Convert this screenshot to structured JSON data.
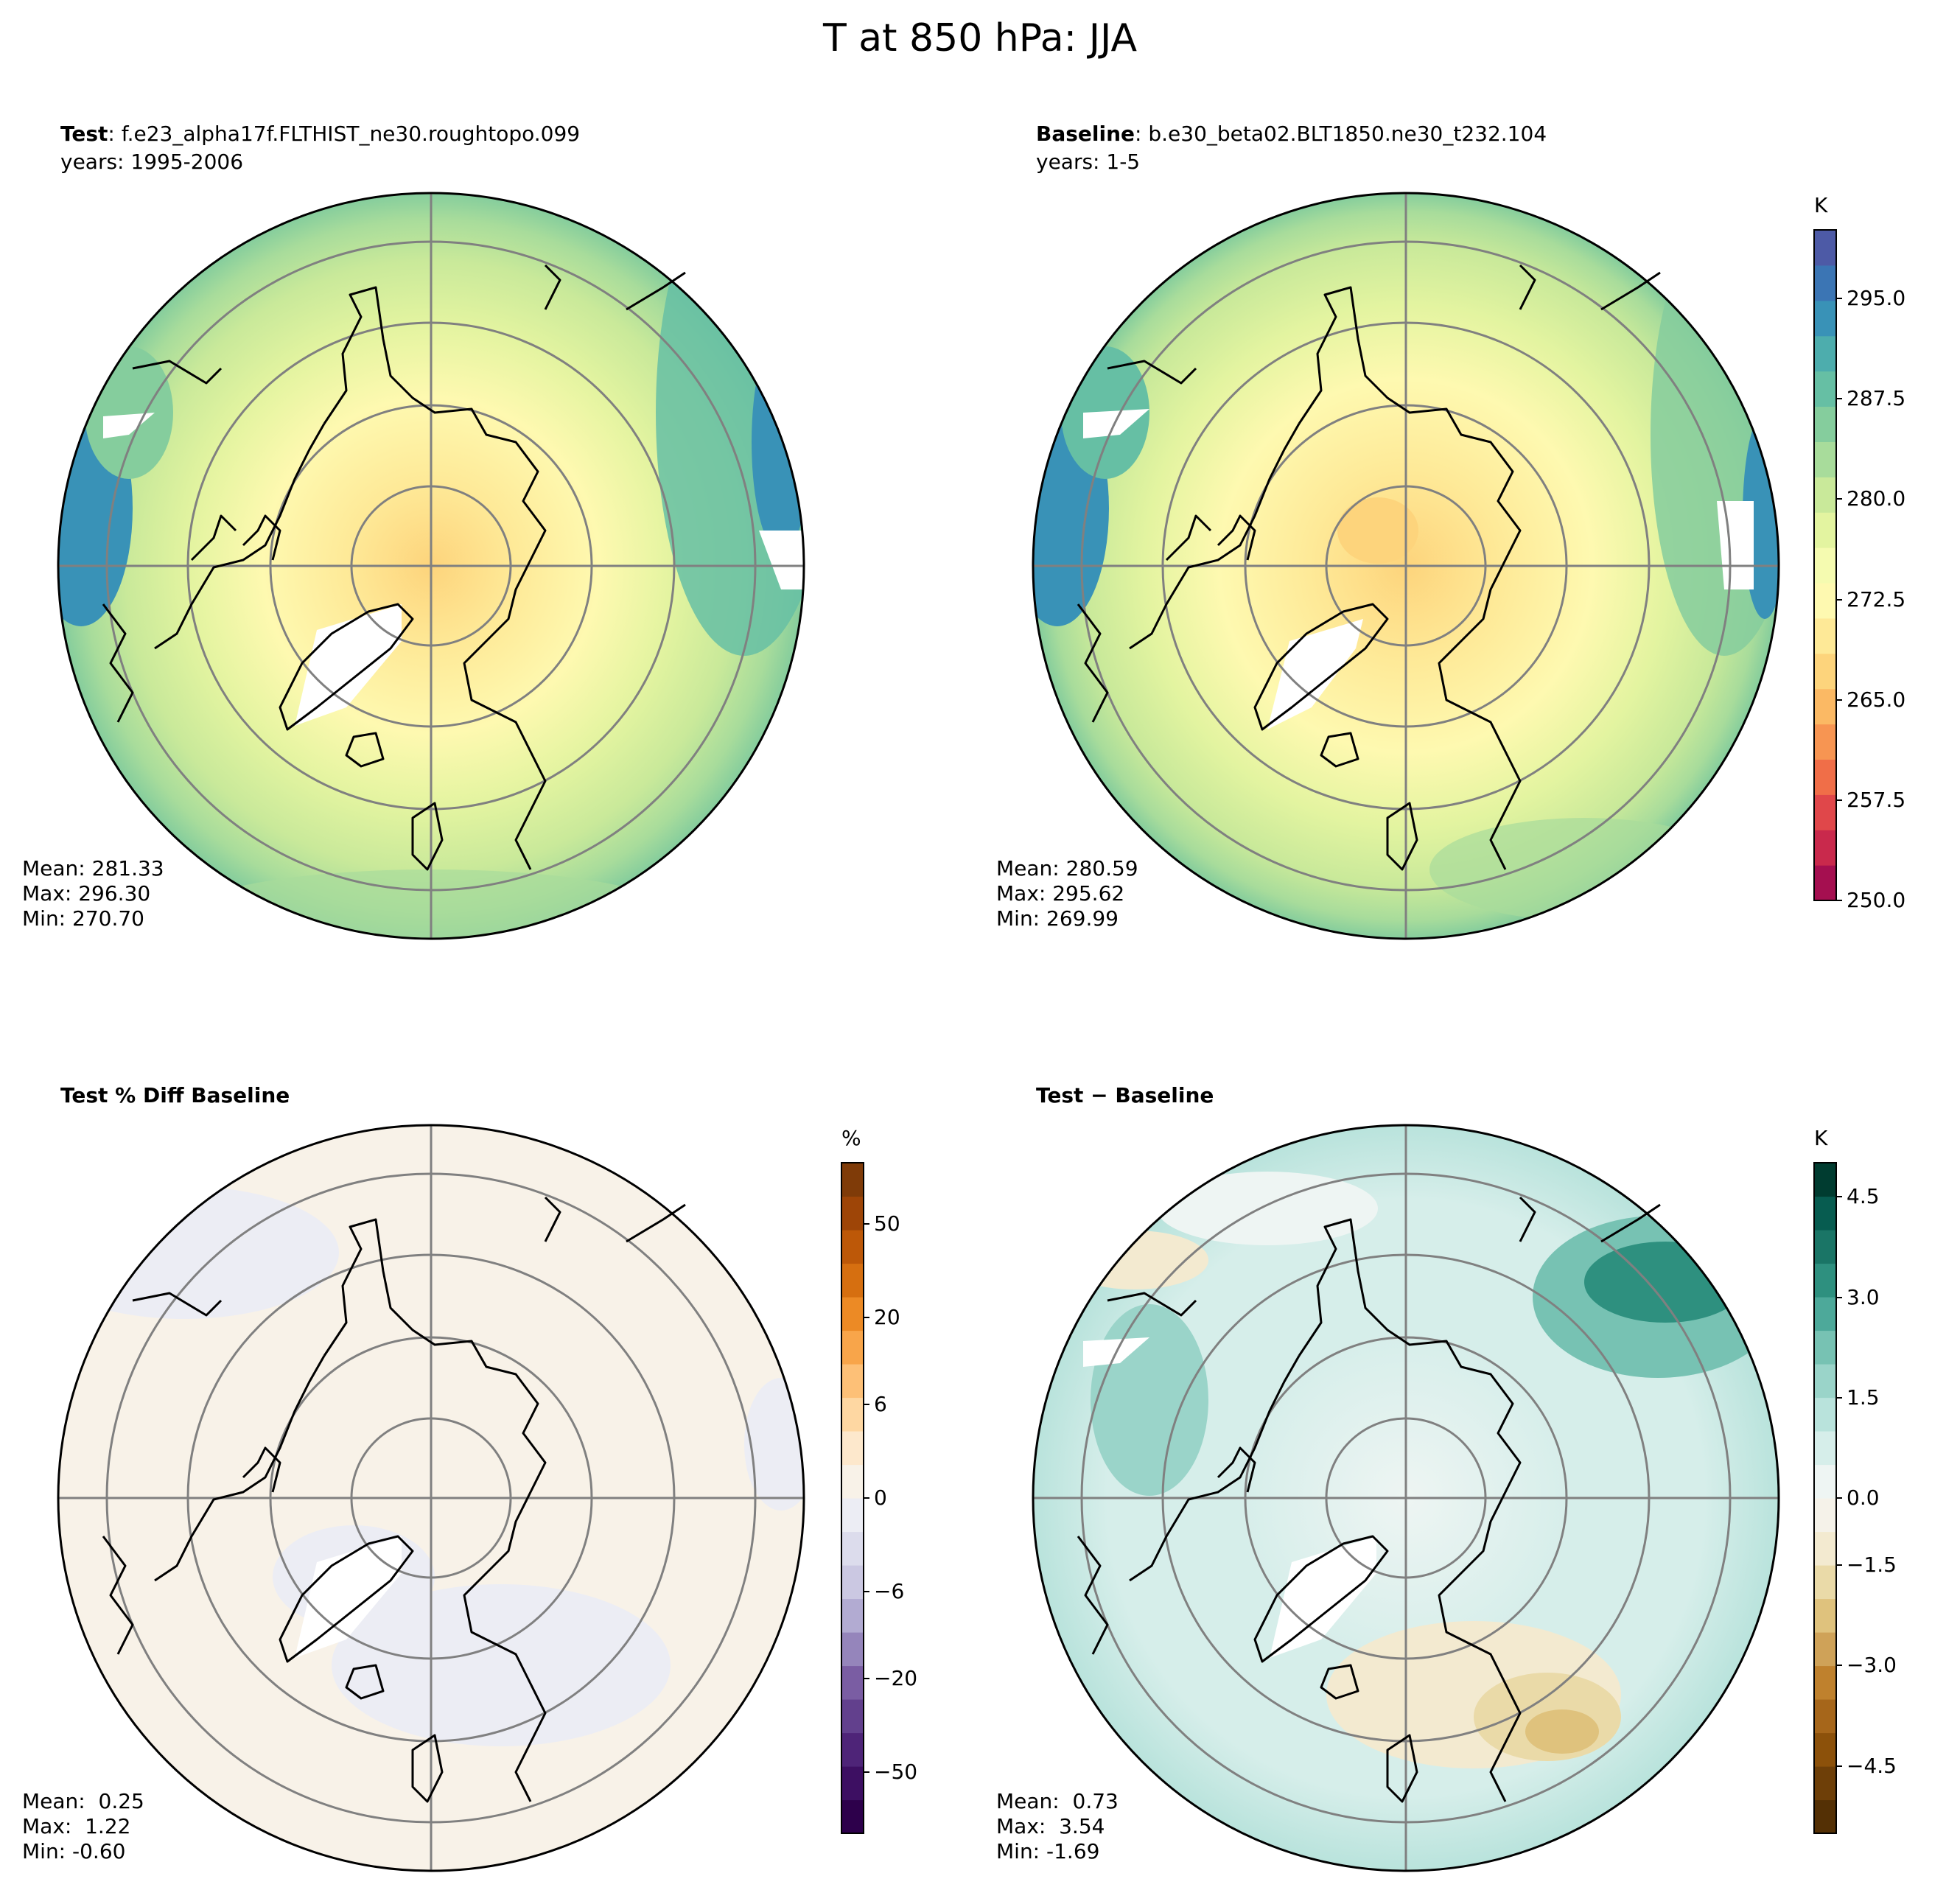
{
  "figure_title": "T at 850 hPa: JJA",
  "panels": {
    "test": {
      "label_bold": "Test",
      "label_rest": ": f.e23_alpha17f.FLTHIST_ne30.roughtopo.099",
      "years": "years: 1995-2006",
      "stats": [
        "Mean: 281.33",
        "Max: 296.30",
        "Min: 270.70"
      ]
    },
    "baseline": {
      "label_bold": "Baseline",
      "label_rest": ": b.e30_beta02.BLT1850.ne30_t232.104",
      "years": "years: 1-5",
      "stats": [
        "Mean: 280.59",
        "Max: 295.62",
        "Min: 269.99"
      ]
    },
    "pctdiff": {
      "label_bold": "Test % Diff Baseline",
      "stats": [
        "Mean:  0.25",
        "Max:  1.22",
        "Min: -0.60"
      ]
    },
    "diff": {
      "label_bold": "Test − Baseline",
      "stats": [
        "Mean:  0.73",
        "Max:  3.54",
        "Min: -1.69"
      ]
    }
  },
  "colorbars": {
    "temperature": {
      "unit": "K",
      "ticks": [
        "250.0",
        "257.5",
        "265.0",
        "272.5",
        "280.0",
        "287.5",
        "295.0"
      ],
      "colors": [
        "#a50f50",
        "#c9294c",
        "#e0474a",
        "#f06e48",
        "#f79552",
        "#fbb964",
        "#fdd47c",
        "#fee997",
        "#fef9b0",
        "#f5fbb0",
        "#e3f4a0",
        "#c9e99a",
        "#a8dc9b",
        "#85cd9d",
        "#66bfa4",
        "#4dadad",
        "#3992b7",
        "#3b75b4",
        "#4d5aa6"
      ]
    },
    "percent": {
      "unit": "%",
      "ticks": [
        "−50",
        "−20",
        "−6",
        "0",
        "6",
        "20",
        "50"
      ],
      "colors": [
        "#2d004b",
        "#3d0f62",
        "#4e2478",
        "#62408d",
        "#7a5da3",
        "#9585bb",
        "#b2abd2",
        "#cbc8e2",
        "#dcdcec",
        "#ecedf4",
        "#f8f2e8",
        "#fde8cc",
        "#fed7a2",
        "#fdc077",
        "#f8a54a",
        "#ec8a25",
        "#d66f10",
        "#bd5808",
        "#9e4507",
        "#7f3b08"
      ]
    },
    "difference": {
      "unit": "K",
      "ticks": [
        "−4.5",
        "−3.0",
        "−1.5",
        "0.0",
        "1.5",
        "3.0",
        "4.5"
      ],
      "colors": [
        "#543005",
        "#6e3f08",
        "#8c510a",
        "#a6661a",
        "#bf812d",
        "#cfa258",
        "#dfc27d",
        "#eadaa8",
        "#f3ead0",
        "#f5f2e9",
        "#eef5f3",
        "#d6eeea",
        "#b9e3dc",
        "#9ad4c9",
        "#77c2b3",
        "#4da99a",
        "#2e907f",
        "#1a7566",
        "#075c50",
        "#003c30"
      ]
    }
  },
  "map_legend_colors": {
    "coastline": "#000000",
    "graticule": "#808080",
    "missing": "#ffffff"
  }
}
